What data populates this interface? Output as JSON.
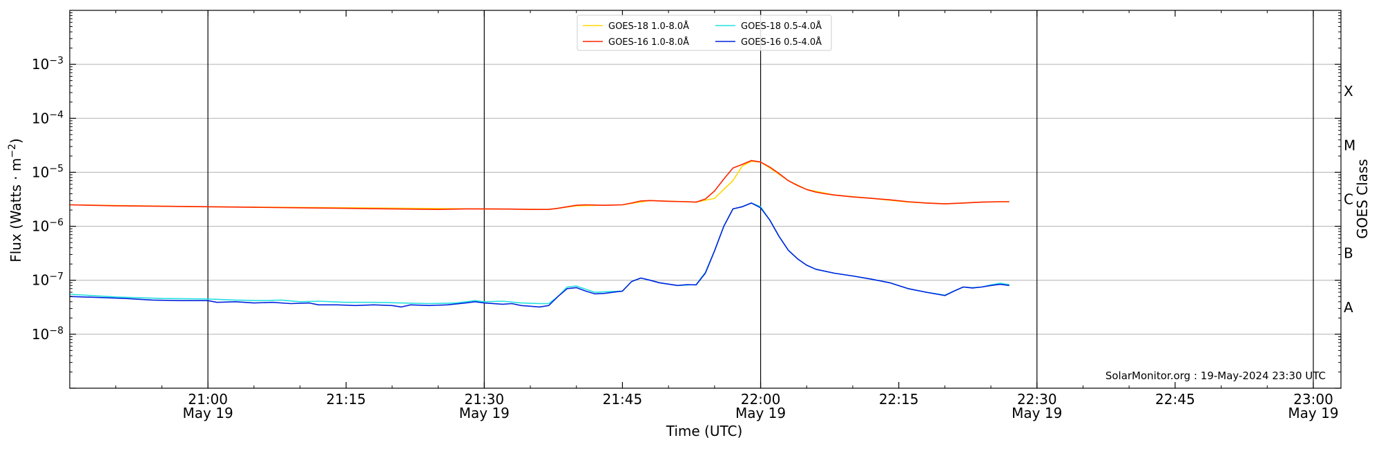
{
  "chart_data": {
    "type": "line",
    "title": "",
    "xlabel": "Time (UTC)",
    "ylabel_prefix": "Flux (Watts · m",
    "ylabel_sup": "−2",
    "ylabel_suffix": ")",
    "y_scale": "log",
    "ylim": [
      1e-09,
      0.01
    ],
    "xlim_minutes": [
      20.75,
      23.05
    ],
    "x_ticks": [
      {
        "hour": 21,
        "minute": 0,
        "label": "21:00",
        "date": "May 19"
      },
      {
        "hour": 21,
        "minute": 15,
        "label": "21:15",
        "date": ""
      },
      {
        "hour": 21,
        "minute": 30,
        "label": "21:30",
        "date": "May 19"
      },
      {
        "hour": 21,
        "minute": 45,
        "label": "21:45",
        "date": ""
      },
      {
        "hour": 22,
        "minute": 0,
        "label": "22:00",
        "date": "May 19"
      },
      {
        "hour": 22,
        "minute": 15,
        "label": "22:15",
        "date": ""
      },
      {
        "hour": 22,
        "minute": 30,
        "label": "22:30",
        "date": "May 19"
      },
      {
        "hour": 22,
        "minute": 45,
        "label": "22:45",
        "date": ""
      },
      {
        "hour": 23,
        "minute": 0,
        "label": "23:00",
        "date": "May 19"
      }
    ],
    "y_ticks": [
      {
        "exp": -8,
        "base": "10",
        "sup": "−8"
      },
      {
        "exp": -7,
        "base": "10",
        "sup": "−7"
      },
      {
        "exp": -6,
        "base": "10",
        "sup": "−6"
      },
      {
        "exp": -5,
        "base": "10",
        "sup": "−5"
      },
      {
        "exp": -4,
        "base": "10",
        "sup": "−4"
      },
      {
        "exp": -3,
        "base": "10",
        "sup": "−3"
      }
    ],
    "right_axis": {
      "label": "GOES Class",
      "classes": [
        {
          "label": "A",
          "exp": -7.5
        },
        {
          "label": "B",
          "exp": -6.5
        },
        {
          "label": "C",
          "exp": -5.5
        },
        {
          "label": "M",
          "exp": -4.5
        },
        {
          "label": "X",
          "exp": -3.5
        }
      ]
    },
    "grid": {
      "horizontal": true,
      "vertical_at": [
        "21:00",
        "21:30",
        "22:00",
        "22:30",
        "23:00"
      ]
    },
    "legend": {
      "placement": "top-center",
      "columns": 2
    },
    "series": [
      {
        "name": "GOES-18 1.0-8.0Å",
        "color": "#ffd700",
        "points": [
          [
            "20:45",
            2.5e-06
          ],
          [
            "21:00",
            2.3e-06
          ],
          [
            "21:15",
            2.2e-06
          ],
          [
            "21:30",
            2.1e-06
          ],
          [
            "21:37",
            2.05e-06
          ],
          [
            "21:40",
            2.4e-06
          ],
          [
            "21:45",
            2.5e-06
          ],
          [
            "21:48",
            3e-06
          ],
          [
            "21:53",
            2.8e-06
          ],
          [
            "21:55",
            3.3e-06
          ],
          [
            "21:57",
            7e-06
          ],
          [
            "21:58",
            1.3e-05
          ],
          [
            "21:59",
            1.6e-05
          ],
          [
            "22:00",
            1.55e-05
          ],
          [
            "22:01",
            1.2e-05
          ],
          [
            "22:03",
            7e-06
          ],
          [
            "22:05",
            4.8e-06
          ],
          [
            "22:08",
            3.8e-06
          ],
          [
            "22:12",
            3.3e-06
          ],
          [
            "22:16",
            2.8e-06
          ],
          [
            "22:20",
            2.6e-06
          ],
          [
            "22:22",
            2.7e-06
          ],
          [
            "22:24",
            2.8e-06
          ],
          [
            "22:27",
            2.85e-06
          ]
        ]
      },
      {
        "name": "GOES-16 1.0-8.0Å",
        "color": "#ff2200",
        "points": [
          [
            "20:45",
            2.5e-06
          ],
          [
            "20:50",
            2.4e-06
          ],
          [
            "21:00",
            2.3e-06
          ],
          [
            "21:05",
            2.25e-06
          ],
          [
            "21:10",
            2.2e-06
          ],
          [
            "21:15",
            2.15e-06
          ],
          [
            "21:20",
            2.1e-06
          ],
          [
            "21:25",
            2.05e-06
          ],
          [
            "21:28",
            2.1e-06
          ],
          [
            "21:30",
            2.1e-06
          ],
          [
            "21:33",
            2.08e-06
          ],
          [
            "21:35",
            2.05e-06
          ],
          [
            "21:37",
            2.05e-06
          ],
          [
            "21:38",
            2.15e-06
          ],
          [
            "21:39",
            2.3e-06
          ],
          [
            "21:40",
            2.45e-06
          ],
          [
            "21:41",
            2.5e-06
          ],
          [
            "21:43",
            2.45e-06
          ],
          [
            "21:45",
            2.5e-06
          ],
          [
            "21:46",
            2.7e-06
          ],
          [
            "21:47",
            2.95e-06
          ],
          [
            "21:48",
            3e-06
          ],
          [
            "21:50",
            2.9e-06
          ],
          [
            "21:52",
            2.85e-06
          ],
          [
            "21:53",
            2.8e-06
          ],
          [
            "21:54",
            3.2e-06
          ],
          [
            "21:55",
            4.5e-06
          ],
          [
            "21:56",
            7.5e-06
          ],
          [
            "21:57",
            1.2e-05
          ],
          [
            "21:58",
            1.4e-05
          ],
          [
            "21:59",
            1.65e-05
          ],
          [
            "22:00",
            1.55e-05
          ],
          [
            "22:01",
            1.25e-05
          ],
          [
            "22:02",
            9.5e-06
          ],
          [
            "22:03",
            7e-06
          ],
          [
            "22:04",
            5.7e-06
          ],
          [
            "22:05",
            4.8e-06
          ],
          [
            "22:06",
            4.3e-06
          ],
          [
            "22:07",
            4e-06
          ],
          [
            "22:08",
            3.8e-06
          ],
          [
            "22:10",
            3.5e-06
          ],
          [
            "22:12",
            3.3e-06
          ],
          [
            "22:14",
            3.1e-06
          ],
          [
            "22:16",
            2.85e-06
          ],
          [
            "22:18",
            2.7e-06
          ],
          [
            "22:20",
            2.6e-06
          ],
          [
            "22:22",
            2.7e-06
          ],
          [
            "22:24",
            2.8e-06
          ],
          [
            "22:26",
            2.85e-06
          ],
          [
            "22:27",
            2.85e-06
          ]
        ]
      },
      {
        "name": "GOES-18 0.5-4.0Å",
        "color": "#22e0e0",
        "points": [
          [
            "20:45",
            5.5e-08
          ],
          [
            "20:50",
            4.9e-08
          ],
          [
            "20:55",
            4.6e-08
          ],
          [
            "21:00",
            4.5e-08
          ],
          [
            "21:03",
            4.3e-08
          ],
          [
            "21:06",
            4.2e-08
          ],
          [
            "21:08",
            4.3e-08
          ],
          [
            "21:10",
            4e-08
          ],
          [
            "21:12",
            4.1e-08
          ],
          [
            "21:15",
            3.9e-08
          ],
          [
            "21:18",
            3.9e-08
          ],
          [
            "21:21",
            3.8e-08
          ],
          [
            "21:24",
            3.7e-08
          ],
          [
            "21:27",
            3.8e-08
          ],
          [
            "21:29",
            4.2e-08
          ],
          [
            "21:30",
            4e-08
          ],
          [
            "21:32",
            4.1e-08
          ],
          [
            "21:34",
            3.8e-08
          ],
          [
            "21:36",
            3.7e-08
          ],
          [
            "21:37",
            3.7e-08
          ],
          [
            "21:38",
            5e-08
          ],
          [
            "21:39",
            7.5e-08
          ],
          [
            "21:40",
            7.8e-08
          ],
          [
            "21:42",
            6e-08
          ],
          [
            "21:44",
            6.2e-08
          ],
          [
            "21:45",
            6.3e-08
          ],
          [
            "21:46",
            9.5e-08
          ],
          [
            "21:47",
            1.1e-07
          ],
          [
            "21:48",
            1e-07
          ],
          [
            "21:49",
            9e-08
          ],
          [
            "21:51",
            8e-08
          ],
          [
            "21:53",
            8.3e-08
          ],
          [
            "21:54",
            1.4e-07
          ],
          [
            "21:55",
            3.5e-07
          ],
          [
            "21:56",
            1e-06
          ],
          [
            "21:57",
            2.1e-06
          ],
          [
            "21:58",
            2.3e-06
          ],
          [
            "21:59",
            2.7e-06
          ],
          [
            "22:00",
            2.3e-06
          ],
          [
            "22:01",
            1.3e-06
          ],
          [
            "22:02",
            6.5e-07
          ],
          [
            "22:03",
            3.6e-07
          ],
          [
            "22:04",
            2.5e-07
          ],
          [
            "22:05",
            1.9e-07
          ],
          [
            "22:06",
            1.6e-07
          ],
          [
            "22:08",
            1.35e-07
          ],
          [
            "22:10",
            1.2e-07
          ],
          [
            "22:12",
            1.05e-07
          ],
          [
            "22:14",
            9e-08
          ],
          [
            "22:16",
            7e-08
          ],
          [
            "22:18",
            6e-08
          ],
          [
            "22:20",
            5.3e-08
          ],
          [
            "22:21",
            6.3e-08
          ],
          [
            "22:22",
            7.5e-08
          ],
          [
            "22:23",
            7.3e-08
          ],
          [
            "22:24",
            7.5e-08
          ],
          [
            "22:25",
            8.2e-08
          ],
          [
            "22:26",
            8.8e-08
          ],
          [
            "22:27",
            8.3e-08
          ]
        ]
      },
      {
        "name": "GOES-16 0.5-4.0Å",
        "color": "#0022dd",
        "points": [
          [
            "20:45",
            5e-08
          ],
          [
            "20:48",
            4.8e-08
          ],
          [
            "20:51",
            4.6e-08
          ],
          [
            "20:54",
            4.3e-08
          ],
          [
            "20:57",
            4.2e-08
          ],
          [
            "21:00",
            4.2e-08
          ],
          [
            "21:01",
            3.9e-08
          ],
          [
            "21:03",
            4e-08
          ],
          [
            "21:05",
            3.8e-08
          ],
          [
            "21:07",
            3.9e-08
          ],
          [
            "21:09",
            3.7e-08
          ],
          [
            "21:11",
            3.8e-08
          ],
          [
            "21:12",
            3.5e-08
          ],
          [
            "21:14",
            3.5e-08
          ],
          [
            "21:16",
            3.4e-08
          ],
          [
            "21:18",
            3.5e-08
          ],
          [
            "21:20",
            3.4e-08
          ],
          [
            "21:21",
            3.2e-08
          ],
          [
            "21:22",
            3.5e-08
          ],
          [
            "21:24",
            3.4e-08
          ],
          [
            "21:26",
            3.5e-08
          ],
          [
            "21:28",
            3.8e-08
          ],
          [
            "21:29",
            4e-08
          ],
          [
            "21:30",
            3.8e-08
          ],
          [
            "21:32",
            3.6e-08
          ],
          [
            "21:33",
            3.7e-08
          ],
          [
            "21:34",
            3.4e-08
          ],
          [
            "21:35",
            3.3e-08
          ],
          [
            "21:36",
            3.2e-08
          ],
          [
            "21:37",
            3.4e-08
          ],
          [
            "21:38",
            5e-08
          ],
          [
            "21:39",
            7e-08
          ],
          [
            "21:40",
            7.3e-08
          ],
          [
            "21:41",
            6.3e-08
          ],
          [
            "21:42",
            5.6e-08
          ],
          [
            "21:43",
            5.7e-08
          ],
          [
            "21:45",
            6.3e-08
          ],
          [
            "21:46",
            9.5e-08
          ],
          [
            "21:47",
            1.1e-07
          ],
          [
            "21:48",
            1e-07
          ],
          [
            "21:49",
            9e-08
          ],
          [
            "21:51",
            8e-08
          ],
          [
            "21:52",
            8.3e-08
          ],
          [
            "21:53",
            8.2e-08
          ],
          [
            "21:54",
            1.35e-07
          ],
          [
            "21:55",
            3.5e-07
          ],
          [
            "21:56",
            1e-06
          ],
          [
            "21:57",
            2.1e-06
          ],
          [
            "21:58",
            2.3e-06
          ],
          [
            "21:59",
            2.7e-06
          ],
          [
            "22:00",
            2.2e-06
          ],
          [
            "22:01",
            1.3e-06
          ],
          [
            "22:02",
            6.5e-07
          ],
          [
            "22:03",
            3.6e-07
          ],
          [
            "22:04",
            2.5e-07
          ],
          [
            "22:05",
            1.9e-07
          ],
          [
            "22:06",
            1.6e-07
          ],
          [
            "22:08",
            1.35e-07
          ],
          [
            "22:10",
            1.2e-07
          ],
          [
            "22:12",
            1.05e-07
          ],
          [
            "22:14",
            9e-08
          ],
          [
            "22:16",
            7e-08
          ],
          [
            "22:18",
            6e-08
          ],
          [
            "22:20",
            5.2e-08
          ],
          [
            "22:21",
            6.3e-08
          ],
          [
            "22:22",
            7.5e-08
          ],
          [
            "22:23",
            7.2e-08
          ],
          [
            "22:24",
            7.5e-08
          ],
          [
            "22:25",
            8e-08
          ],
          [
            "22:26",
            8.4e-08
          ],
          [
            "22:27",
            8e-08
          ]
        ]
      }
    ],
    "annotation": "SolarMonitor.org : 19-May-2024 23:30 UTC"
  }
}
